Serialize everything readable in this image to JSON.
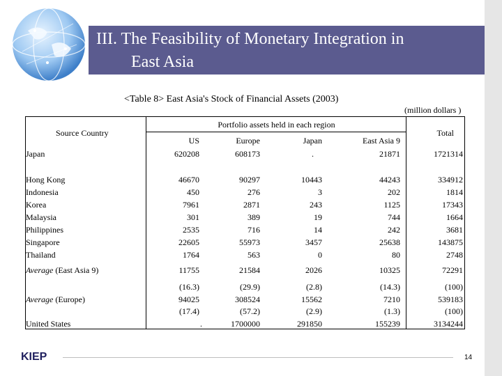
{
  "title": {
    "line1": "III. The Feasibility of Monetary Integration in",
    "line2": "East Asia"
  },
  "table": {
    "caption": "<Table 8> East Asia's Stock of Financial Assets (2003)",
    "units": "(million dollars )",
    "source_header": "Source Country",
    "group_header": "Portfolio assets held in each region",
    "columns": [
      "US",
      "Europe",
      "Japan",
      "East Asia 9"
    ],
    "total_header": "Total",
    "japan_row": {
      "label": "Japan",
      "values": [
        "620208",
        "608173",
        ".",
        "21871",
        "1721314"
      ]
    },
    "country_rows": [
      {
        "label": "Hong Kong",
        "values": [
          "46670",
          "90297",
          "10443",
          "44243",
          "334912"
        ]
      },
      {
        "label": "Indonesia",
        "values": [
          "450",
          "276",
          "3",
          "202",
          "1814"
        ]
      },
      {
        "label": "Korea",
        "values": [
          "7961",
          "2871",
          "243",
          "1125",
          "17343"
        ]
      },
      {
        "label": "Malaysia",
        "values": [
          "301",
          "389",
          "19",
          "744",
          "1664"
        ]
      },
      {
        "label": "Philippines",
        "values": [
          "2535",
          "716",
          "14",
          "242",
          "3681"
        ]
      },
      {
        "label": "Singapore",
        "values": [
          "22605",
          "55973",
          "3457",
          "25638",
          "143875"
        ]
      },
      {
        "label": "Thailand",
        "values": [
          "1764",
          "563",
          "0",
          "80",
          "2748"
        ]
      }
    ],
    "avg_ea": {
      "label_italic": "Average",
      "label_rest": " (East Asia 9)",
      "values": [
        "11755",
        "21584",
        "2026",
        "10325",
        "72291"
      ]
    },
    "avg_ea_share": [
      "(16.3)",
      "(29.9)",
      "(2.8)",
      "(14.3)",
      "(100)"
    ],
    "avg_eu": {
      "label_italic": "Average",
      "label_rest": " (Europe)",
      "values": [
        "94025",
        "308524",
        "15562",
        "7210",
        "539183"
      ]
    },
    "avg_eu_share": [
      "(17.4)",
      "(57.2)",
      "(2.9)",
      "(1.3)",
      "(100)"
    ],
    "us_row": {
      "label": "United States",
      "values": [
        ".",
        "1700000",
        "291850",
        "155239",
        "3134244"
      ]
    }
  },
  "footer": {
    "logo": "KIEP",
    "page": "14"
  },
  "colors": {
    "title_bar": "#5b5b8f",
    "side_strip": "#e6e6e6"
  }
}
